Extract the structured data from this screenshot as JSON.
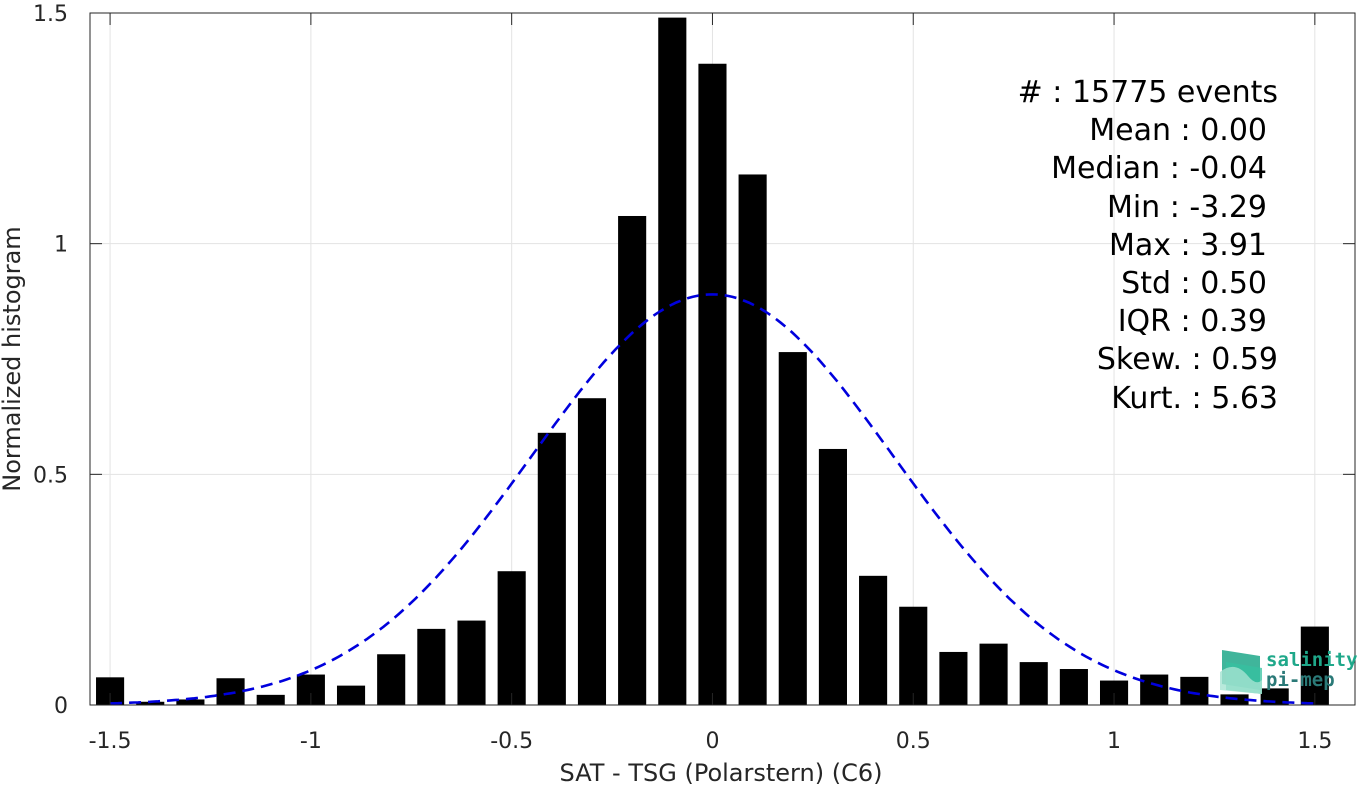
{
  "chart_data": {
    "type": "bar",
    "xlabel": "SAT - TSG (Polarstern) (C6)",
    "ylabel": "Normalized histogram",
    "xlim": [
      -1.55,
      1.6
    ],
    "ylim": [
      0,
      1.5
    ],
    "xticks": [
      -1.5,
      -1,
      -0.5,
      0,
      0.5,
      1,
      1.5
    ],
    "xtick_labels": [
      "-1.5",
      "-1",
      "-0.5",
      "0",
      "0.5",
      "1",
      "1.5"
    ],
    "yticks": [
      0,
      0.5,
      1,
      1.5
    ],
    "ytick_labels": [
      "0",
      "0.5",
      "1",
      "1.5"
    ],
    "grid": true,
    "bar_width": 0.07,
    "bar_color": "#000000",
    "fit_color": "#0000dd",
    "bins": [
      -1.5,
      -1.4,
      -1.3,
      -1.2,
      -1.1,
      -1.0,
      -0.9,
      -0.8,
      -0.7,
      -0.6,
      -0.5,
      -0.4,
      -0.3,
      -0.2,
      -0.1,
      0.0,
      0.1,
      0.2,
      0.3,
      0.4,
      0.5,
      0.6,
      0.7,
      0.8,
      0.9,
      1.0,
      1.1,
      1.2,
      1.3,
      1.4,
      1.5
    ],
    "values": [
      0.06,
      0.007,
      0.012,
      0.058,
      0.022,
      0.066,
      0.042,
      0.11,
      0.165,
      0.183,
      0.29,
      0.59,
      0.665,
      1.06,
      1.49,
      1.39,
      1.15,
      0.765,
      0.555,
      0.28,
      0.213,
      0.115,
      0.133,
      0.093,
      0.078,
      0.053,
      0.066,
      0.061,
      0.023,
      0.036,
      0.17
    ],
    "fit": {
      "type": "normal",
      "mean": 0.0,
      "std": 0.45,
      "scale": 0.89,
      "style": "dashed"
    },
    "stats": [
      {
        "label": "#  : 15775 events"
      },
      {
        "label": "Mean : 0.00"
      },
      {
        "label": "Median : -0.04"
      },
      {
        "label": "Min : -3.29"
      },
      {
        "label": "Max : 3.91"
      },
      {
        "label": "Std : 0.50"
      },
      {
        "label": "IQR : 0.39"
      },
      {
        "label": "Skew. : 0.59"
      },
      {
        "label": "Kurt. : 5.63"
      }
    ]
  },
  "logo": {
    "line1": "salinity",
    "line2": "pi-mep",
    "color1": "#1fa88a",
    "color2": "#2b7a78"
  }
}
